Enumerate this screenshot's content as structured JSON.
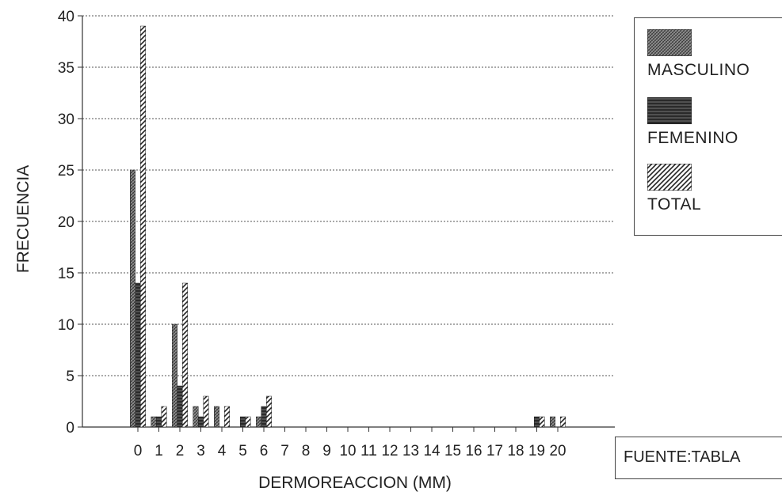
{
  "chart_data": {
    "type": "bar",
    "title": "",
    "xlabel": "DERMOREACCION (MM)",
    "ylabel": "FRECUENCIA",
    "ylim": [
      0,
      40
    ],
    "yticks": [
      "0",
      "5",
      "10",
      "15",
      "20",
      "25",
      "30",
      "35",
      "40"
    ],
    "categories": [
      "0",
      "1",
      "2",
      "3",
      "4",
      "5",
      "6",
      "7",
      "8",
      "9",
      "10",
      "11",
      "12",
      "13",
      "14",
      "15",
      "16",
      "17",
      "18",
      "19",
      "20"
    ],
    "grid": true,
    "legend_position": "right",
    "series": [
      {
        "name": "MASCULINO",
        "values": [
          25,
          1,
          10,
          2,
          2,
          0,
          1,
          0,
          0,
          0,
          0,
          0,
          0,
          0,
          0,
          0,
          0,
          0,
          0,
          0,
          1
        ],
        "color": "#6f6f6f",
        "pattern": "dense"
      },
      {
        "name": "FEMENINO",
        "values": [
          14,
          1,
          4,
          1,
          0,
          1,
          2,
          0,
          0,
          0,
          0,
          0,
          0,
          0,
          0,
          0,
          0,
          0,
          0,
          1,
          0
        ],
        "color": "#2b2b2b",
        "pattern": "dark"
      },
      {
        "name": "TOTAL",
        "values": [
          39,
          2,
          14,
          3,
          2,
          1,
          3,
          0,
          0,
          0,
          0,
          0,
          0,
          0,
          0,
          0,
          0,
          0,
          0,
          1,
          1
        ],
        "color": "#3a3a3a",
        "pattern": "diagonal"
      }
    ]
  },
  "legend": {
    "items": [
      {
        "label": "MASCULINO",
        "icon": "masculino-swatch"
      },
      {
        "label": "FEMENINO",
        "icon": "femenino-swatch"
      },
      {
        "label": "TOTAL",
        "icon": "total-swatch"
      }
    ]
  },
  "source": {
    "text": "FUENTE:TABLA"
  }
}
